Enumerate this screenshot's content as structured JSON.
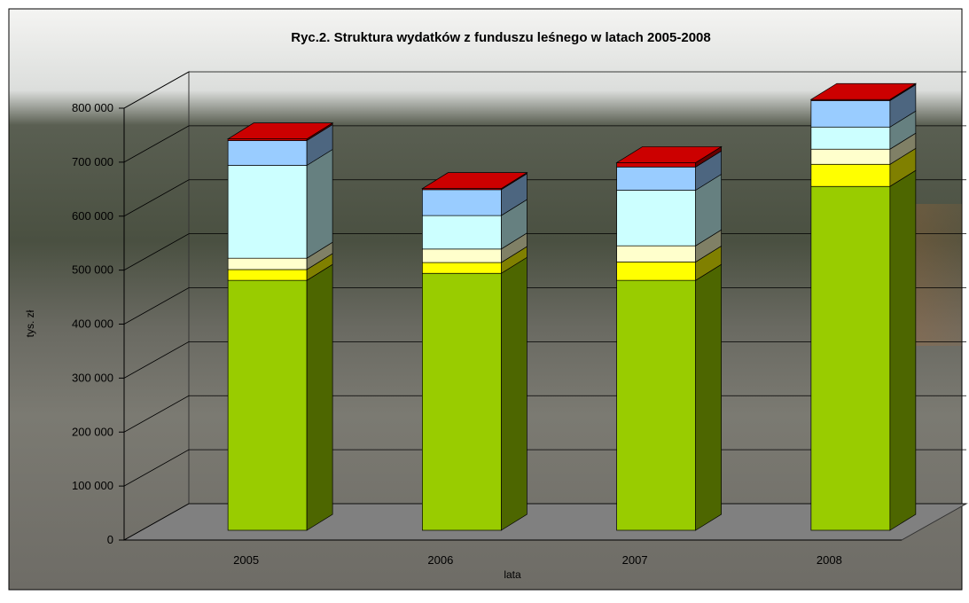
{
  "chart_data": {
    "type": "bar3d_stacked",
    "title": "Ryc.2. Struktura wydatków z funduszu leśnego w latach 2005-2008",
    "x_label": "lata",
    "y_label": "tys. zł",
    "categories": [
      "2005",
      "2006",
      "2007",
      "2008"
    ],
    "series": [
      {
        "color": "#99cc00",
        "values": [
          463000,
          476000,
          463000,
          637000
        ]
      },
      {
        "color": "#ffff00",
        "values": [
          20000,
          20000,
          34000,
          41000
        ]
      },
      {
        "color": "#ffffcc",
        "values": [
          21000,
          25000,
          30000,
          28000
        ]
      },
      {
        "color": "#ccffff",
        "values": [
          172000,
          62000,
          103000,
          41000
        ]
      },
      {
        "color": "#99ccff",
        "values": [
          46000,
          48000,
          43000,
          49000
        ]
      },
      {
        "color": "#cc0000",
        "values": [
          3000,
          2000,
          8000,
          2000
        ]
      }
    ],
    "ylim": [
      0,
      800000
    ],
    "yticks": [
      0,
      {
        "value": 100000,
        "label": "100 000"
      },
      {
        "value": 200000,
        "label": "200 000"
      },
      {
        "value": 300000,
        "label": "300 000"
      },
      {
        "value": 400000,
        "label": "400 000"
      },
      {
        "value": 500000,
        "label": "500 000"
      },
      {
        "value": 600000,
        "label": "600 000"
      },
      {
        "value": 700000,
        "label": "700 000"
      },
      {
        "value": 800000,
        "label": "800 000"
      }
    ],
    "grid": true
  }
}
